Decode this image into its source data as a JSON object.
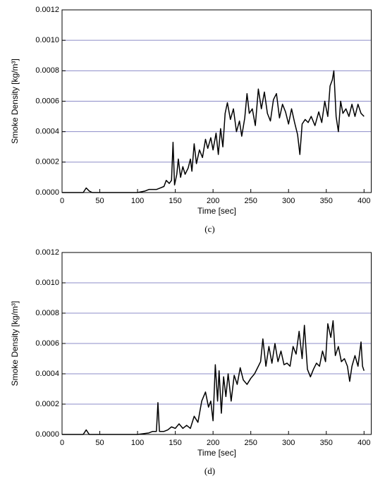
{
  "chart_data": [
    {
      "type": "line",
      "caption": "(c)",
      "x_label": "Time [sec]",
      "y_label": "Smoke Density [kg/m³]",
      "color": "#000000",
      "grid": true,
      "xlim": [
        0,
        410
      ],
      "xticks": [
        0,
        50,
        100,
        150,
        200,
        250,
        300,
        350,
        400
      ],
      "ylim": [
        0,
        0.0012
      ],
      "yticks": [
        {
          "value": 0,
          "label": "0.0000"
        },
        {
          "value": 0.0002,
          "label": "0.0002"
        },
        {
          "value": 0.0004,
          "label": "0.0004"
        },
        {
          "value": 0.0006,
          "label": "0.0006"
        },
        {
          "value": 0.0008,
          "label": "0.0008"
        },
        {
          "value": 0.001,
          "label": "0.0010"
        },
        {
          "value": 0.0012,
          "label": "0.0012"
        }
      ],
      "x": [
        0,
        28,
        32,
        36,
        40,
        100,
        110,
        115,
        125,
        130,
        135,
        138,
        142,
        145,
        147,
        149,
        152,
        154,
        157,
        160,
        163,
        167,
        170,
        172,
        175,
        178,
        182,
        186,
        190,
        193,
        197,
        200,
        204,
        207,
        210,
        213,
        216,
        219,
        223,
        227,
        231,
        235,
        238,
        242,
        245,
        248,
        252,
        256,
        260,
        264,
        268,
        272,
        276,
        280,
        284,
        288,
        292,
        296,
        300,
        304,
        308,
        312,
        315,
        318,
        322,
        326,
        330,
        335,
        340,
        344,
        348,
        352,
        355,
        358,
        360,
        363,
        366,
        369,
        372,
        376,
        380,
        384,
        388,
        392,
        396,
        400
      ],
      "values": [
        0,
        0,
        3e-05,
        1e-05,
        0,
        0,
        1e-05,
        2e-05,
        2e-05,
        3e-05,
        4e-05,
        8e-05,
        6e-05,
        8e-05,
        0.00033,
        5e-05,
        0.00012,
        0.00022,
        0.0001,
        0.00017,
        0.00012,
        0.00016,
        0.00022,
        0.00014,
        0.00032,
        0.00019,
        0.00028,
        0.00023,
        0.00035,
        0.00029,
        0.00036,
        0.00028,
        0.00039,
        0.00025,
        0.00042,
        0.0003,
        0.00052,
        0.00059,
        0.00048,
        0.00055,
        0.0004,
        0.00047,
        0.00037,
        0.00049,
        0.00065,
        0.00052,
        0.00055,
        0.00044,
        0.00068,
        0.00055,
        0.00066,
        0.00052,
        0.00047,
        0.00061,
        0.00065,
        0.00049,
        0.00058,
        0.00053,
        0.00045,
        0.00055,
        0.00046,
        0.00038,
        0.00025,
        0.00045,
        0.00048,
        0.00046,
        0.0005,
        0.00044,
        0.00053,
        0.00046,
        0.0006,
        0.0005,
        0.0007,
        0.00074,
        0.0008,
        0.0005,
        0.0004,
        0.0006,
        0.00052,
        0.00055,
        0.0005,
        0.00058,
        0.0005,
        0.00058,
        0.00052,
        0.0005
      ]
    },
    {
      "type": "line",
      "caption": "(d)",
      "x_label": "Time [sec]",
      "y_label": "Smoke Density [kg/m³]",
      "color": "#000000",
      "grid": true,
      "xlim": [
        0,
        410
      ],
      "xticks": [
        0,
        50,
        100,
        150,
        200,
        250,
        300,
        350,
        400
      ],
      "ylim": [
        0,
        0.0012
      ],
      "yticks": [
        {
          "value": 0,
          "label": "0.0000"
        },
        {
          "value": 0.0002,
          "label": "0.0002"
        },
        {
          "value": 0.0004,
          "label": "0.0004"
        },
        {
          "value": 0.0006,
          "label": "0.0006"
        },
        {
          "value": 0.0008,
          "label": "0.0008"
        },
        {
          "value": 0.001,
          "label": "0.0010"
        },
        {
          "value": 0.0012,
          "label": "0.0012"
        }
      ],
      "x": [
        0,
        28,
        32,
        36,
        100,
        115,
        120,
        125,
        127,
        129,
        135,
        140,
        145,
        150,
        155,
        160,
        165,
        170,
        175,
        180,
        185,
        190,
        194,
        197,
        200,
        203,
        206,
        208,
        211,
        214,
        217,
        220,
        224,
        228,
        232,
        236,
        240,
        245,
        250,
        255,
        260,
        263,
        266,
        270,
        274,
        278,
        282,
        286,
        290,
        294,
        298,
        302,
        306,
        310,
        314,
        318,
        321,
        325,
        329,
        333,
        337,
        341,
        345,
        349,
        352,
        356,
        359,
        362,
        366,
        370,
        374,
        378,
        381,
        384,
        388,
        392,
        396,
        398,
        400
      ],
      "values": [
        0,
        0,
        3e-05,
        0,
        0,
        1e-05,
        2e-05,
        2e-05,
        0.00021,
        2e-05,
        2e-05,
        3e-05,
        5e-05,
        4e-05,
        7e-05,
        4e-05,
        6e-05,
        4e-05,
        0.00012,
        8e-05,
        0.00022,
        0.00028,
        0.00018,
        0.00022,
        9e-05,
        0.00046,
        0.00022,
        0.00042,
        0.00014,
        0.00038,
        0.00025,
        0.0004,
        0.00022,
        0.00039,
        0.00033,
        0.00044,
        0.00036,
        0.00033,
        0.00037,
        0.0004,
        0.00045,
        0.00048,
        0.00063,
        0.00045,
        0.00058,
        0.00047,
        0.0006,
        0.00048,
        0.00055,
        0.00046,
        0.00047,
        0.00045,
        0.00058,
        0.00053,
        0.00068,
        0.0005,
        0.00072,
        0.00043,
        0.00038,
        0.00043,
        0.00047,
        0.00045,
        0.00055,
        0.00048,
        0.00073,
        0.00064,
        0.00075,
        0.00052,
        0.00058,
        0.00048,
        0.0005,
        0.00045,
        0.00035,
        0.00045,
        0.00052,
        0.00045,
        0.00061,
        0.00045,
        0.00042
      ]
    }
  ]
}
